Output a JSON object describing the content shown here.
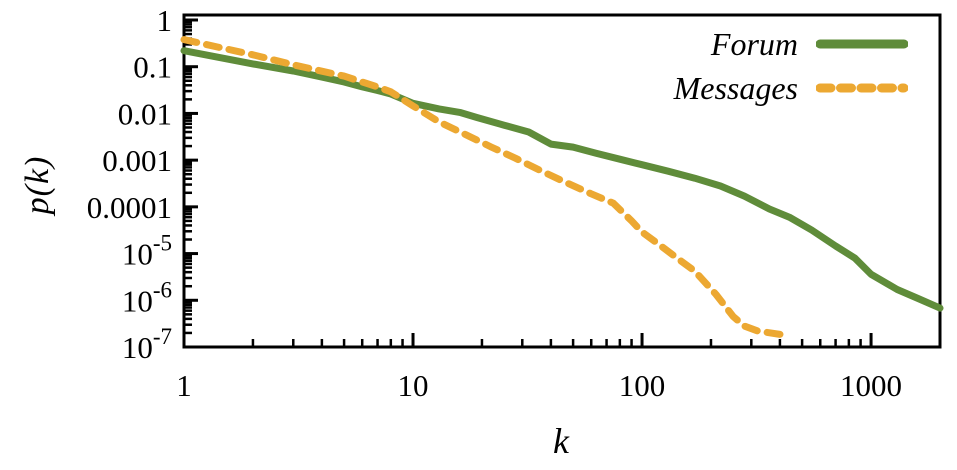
{
  "chart_data": {
    "type": "line",
    "title": "",
    "xlabel": "k",
    "ylabel": "p(k)",
    "xscale": "log",
    "yscale": "log",
    "xlim": [
      1,
      2000
    ],
    "ylim": [
      1e-07,
      1.3
    ],
    "grid": false,
    "legend_position": "top-right",
    "xticks": [
      {
        "value": 1,
        "label": "1"
      },
      {
        "value": 10,
        "label": "10"
      },
      {
        "value": 100,
        "label": "100"
      },
      {
        "value": 1000,
        "label": "1000"
      }
    ],
    "yticks": [
      {
        "value": 1,
        "label": "1"
      },
      {
        "value": 0.1,
        "label": "0.1"
      },
      {
        "value": 0.01,
        "label": "0.01"
      },
      {
        "value": 0.001,
        "label": "0.001"
      },
      {
        "value": 0.0001,
        "label": "0.0001"
      },
      {
        "value": 1e-05,
        "label": "10",
        "exp": "-5"
      },
      {
        "value": 1e-06,
        "label": "10",
        "exp": "-6"
      },
      {
        "value": 1e-07,
        "label": "10",
        "exp": "-7"
      }
    ],
    "series": [
      {
        "name": "Forum",
        "color": "#5f8c3a",
        "style": "solid",
        "x": [
          1,
          2,
          3,
          4,
          5,
          6,
          7,
          8,
          10,
          13,
          16,
          19,
          25,
          32,
          40,
          50,
          63,
          80,
          100,
          130,
          170,
          220,
          280,
          360,
          440,
          550,
          700,
          850,
          1000,
          1300,
          1600,
          2000
        ],
        "p": [
          0.22,
          0.115,
          0.081,
          0.06,
          0.047,
          0.037,
          0.031,
          0.026,
          0.0165,
          0.0125,
          0.0105,
          0.0082,
          0.0056,
          0.004,
          0.0022,
          0.0019,
          0.0014,
          0.00105,
          0.0008,
          0.00058,
          0.00041,
          0.00028,
          0.00017,
          9e-05,
          6e-05,
          3.2e-05,
          1.45e-05,
          8e-06,
          3.6e-06,
          1.7e-06,
          1.1e-06,
          6.8e-07
        ]
      },
      {
        "name": "Messages",
        "color": "#eca832",
        "style": "dashed",
        "x": [
          1,
          2,
          3,
          4,
          5,
          6,
          7,
          8,
          10,
          13,
          17,
          22,
          28,
          36,
          46,
          60,
          75,
          90,
          100,
          115,
          140,
          170,
          210,
          250,
          280,
          320,
          420
        ],
        "p": [
          0.38,
          0.18,
          0.11,
          0.08,
          0.063,
          0.047,
          0.037,
          0.029,
          0.0145,
          0.0066,
          0.0035,
          0.0019,
          0.0011,
          0.0006,
          0.00034,
          0.00019,
          0.00012,
          5e-05,
          2.9e-05,
          1.75e-05,
          8.5e-06,
          4.2e-06,
          1.35e-06,
          4.5e-07,
          2.8e-07,
          2.2e-07,
          1.8e-07
        ]
      }
    ]
  },
  "colors": {
    "axis": "#000000",
    "background": "#ffffff"
  }
}
